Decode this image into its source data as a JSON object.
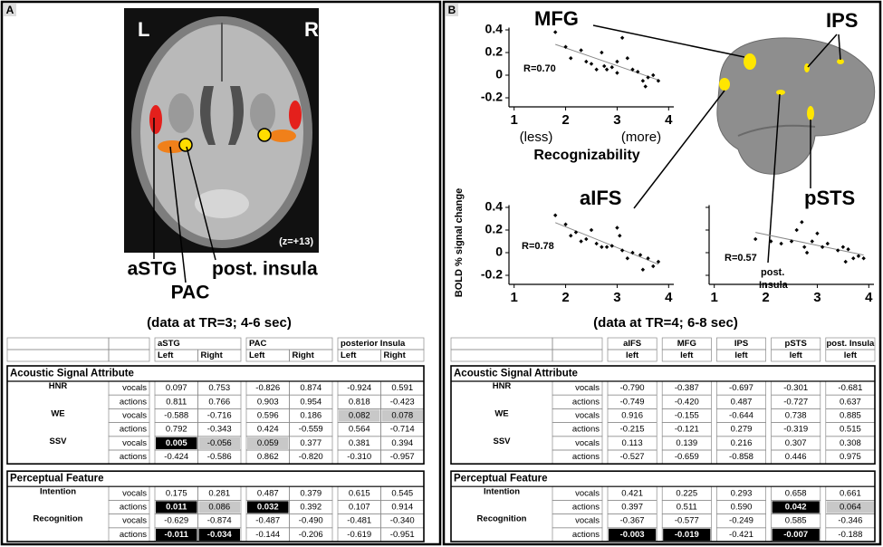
{
  "panel_a": {
    "label": "A",
    "image_labels": {
      "left": "L",
      "right": "R",
      "slice": "(z=+13)"
    },
    "regions": [
      "aSTG",
      "PAC",
      "post. insula"
    ],
    "caption": "(data at TR=3; 4-6 sec)",
    "table": {
      "groups": [
        {
          "name": "aSTG",
          "subs": [
            "Left",
            "Right"
          ]
        },
        {
          "name": "PAC",
          "subs": [
            "Left",
            "Right"
          ]
        },
        {
          "name": "posterior Insula",
          "subs": [
            "Left",
            "Right"
          ]
        }
      ],
      "sections": [
        {
          "title": "Acoustic Signal Attribute",
          "rows": [
            {
              "label": "HNR",
              "kind": "vocals",
              "cells": [
                "0.097",
                "0.753",
                "-0.826",
                "0.874",
                "-0.924",
                "0.591"
              ]
            },
            {
              "kind": "actions",
              "cells": [
                "0.811",
                "0.766",
                "0.903",
                "0.954",
                "0.818",
                "-0.423"
              ]
            },
            {
              "label": "WE",
              "kind": "vocals",
              "cells": [
                "-0.588",
                "-0.716",
                "0.596",
                "0.186",
                {
                  "text": "0.082",
                  "fill": "#c8c8c8"
                },
                {
                  "text": "0.078",
                  "fill": "#c8c8c8"
                }
              ]
            },
            {
              "kind": "actions",
              "cells": [
                "0.792",
                "-0.343",
                "0.424",
                "-0.559",
                "0.564",
                "-0.714"
              ]
            },
            {
              "label": "SSV",
              "kind": "vocals",
              "cells": [
                {
                  "text": "0.005",
                  "fill": "#000000"
                },
                {
                  "text": "-0.056",
                  "fill": "#c8c8c8"
                },
                {
                  "text": "0.059",
                  "fill": "#c8c8c8"
                },
                "0.377",
                "0.381",
                "0.394"
              ]
            },
            {
              "kind": "actions",
              "cells": [
                "-0.424",
                "-0.586",
                "0.862",
                "-0.820",
                "-0.310",
                "-0.957"
              ]
            }
          ]
        },
        {
          "title": "Perceptual Feature",
          "rows": [
            {
              "label": "Intention",
              "kind": "vocals",
              "cells": [
                "0.175",
                "0.281",
                "0.487",
                "0.379",
                "0.615",
                "0.545"
              ]
            },
            {
              "kind": "actions",
              "cells": [
                {
                  "text": "0.011",
                  "fill": "#000000"
                },
                {
                  "text": "0.086",
                  "fill": "#c8c8c8"
                },
                {
                  "text": "0.032",
                  "fill": "#000000"
                },
                "0.392",
                "0.107",
                "0.914"
              ]
            },
            {
              "label": "Recognition",
              "kind": "vocals",
              "cells": [
                "-0.629",
                "-0.874",
                "-0.487",
                "-0.490",
                "-0.481",
                "-0.340"
              ]
            },
            {
              "kind": "actions",
              "cells": [
                {
                  "text": "-0.011",
                  "fill": "#000000"
                },
                {
                  "text": "-0.034",
                  "fill": "#000000"
                },
                "-0.144",
                "-0.206",
                "-0.619",
                "-0.951"
              ]
            }
          ]
        }
      ]
    }
  },
  "panel_b": {
    "label": "B",
    "brain_labels": [
      "IPS",
      "post.",
      "Insula"
    ],
    "caption": "(data at TR=4; 6-8 sec)",
    "plots": [
      {
        "title": "MFG",
        "annotation": "R=0.70",
        "xlabel": "Recognizability",
        "x_end_labels": [
          "(less)",
          "(more)"
        ],
        "xlim": [
          0.9,
          4.1
        ],
        "ylim": [
          -0.28,
          0.42
        ],
        "xticks": [
          1,
          2,
          3,
          4
        ],
        "yticks": [
          0.4,
          0.2,
          0,
          -0.2
        ],
        "x": [
          1.8,
          2.0,
          2.1,
          2.3,
          2.4,
          2.5,
          2.6,
          2.7,
          2.75,
          2.8,
          2.9,
          3.0,
          3.0,
          3.1,
          3.2,
          3.3,
          3.4,
          3.5,
          3.55,
          3.6,
          3.7,
          3.8
        ],
        "y": [
          0.38,
          0.25,
          0.15,
          0.22,
          0.12,
          0.1,
          0.05,
          0.2,
          0.08,
          0.05,
          0.07,
          0.12,
          0.02,
          0.33,
          0.15,
          0.05,
          0.03,
          -0.05,
          -0.1,
          -0.02,
          0.0,
          -0.05
        ]
      },
      {
        "title": "aIFS",
        "annotation": "R=0.78",
        "ylabel": "BOLD % signal change",
        "xlim": [
          0.9,
          4.1
        ],
        "ylim": [
          -0.28,
          0.42
        ],
        "xticks": [
          1,
          2,
          3,
          4
        ],
        "yticks": [
          0.4,
          0.2,
          0,
          -0.2
        ],
        "x": [
          1.8,
          2.0,
          2.1,
          2.2,
          2.3,
          2.4,
          2.5,
          2.6,
          2.7,
          2.8,
          2.9,
          3.0,
          3.05,
          3.1,
          3.2,
          3.3,
          3.45,
          3.5,
          3.6,
          3.7,
          3.8
        ],
        "y": [
          0.33,
          0.25,
          0.15,
          0.18,
          0.1,
          0.12,
          0.2,
          0.08,
          0.05,
          0.05,
          0.06,
          0.22,
          0.15,
          0.02,
          -0.05,
          0.0,
          -0.02,
          -0.15,
          -0.05,
          -0.12,
          -0.08
        ]
      },
      {
        "title": "pSTS",
        "annotation": "R=0.57",
        "ytick_labels": false,
        "xlim": [
          0.9,
          4.1
        ],
        "ylim": [
          -0.28,
          0.42
        ],
        "xticks": [
          1,
          2,
          3,
          4
        ],
        "yticks": [
          0.4,
          0.2,
          0,
          -0.2
        ],
        "x": [
          1.8,
          2.1,
          2.3,
          2.5,
          2.6,
          2.7,
          2.75,
          2.8,
          2.9,
          3.0,
          3.1,
          3.2,
          3.4,
          3.5,
          3.55,
          3.6,
          3.7,
          3.8,
          3.9
        ],
        "y": [
          0.12,
          0.1,
          0.08,
          0.1,
          0.2,
          0.27,
          0.05,
          0.0,
          0.1,
          0.17,
          0.05,
          0.08,
          0.02,
          0.05,
          -0.08,
          0.03,
          -0.05,
          -0.03,
          -0.05
        ]
      }
    ],
    "table": {
      "groups": [
        {
          "name": "aIFS",
          "subs": [
            "left"
          ]
        },
        {
          "name": "MFG",
          "subs": [
            "left"
          ]
        },
        {
          "name": "IPS",
          "subs": [
            "left"
          ]
        },
        {
          "name": "pSTS",
          "subs": [
            "left"
          ]
        },
        {
          "name": "post. Insula",
          "subs": [
            "left"
          ]
        }
      ],
      "sections": [
        {
          "title": "Acoustic Signal Attribute",
          "rows": [
            {
              "label": "HNR",
              "kind": "vocals",
              "cells": [
                "-0.790",
                "-0.387",
                "-0.697",
                "-0.301",
                "-0.681"
              ]
            },
            {
              "kind": "actions",
              "cells": [
                "-0.749",
                "-0.420",
                "0.487",
                "-0.727",
                "0.637"
              ]
            },
            {
              "label": "WE",
              "kind": "vocals",
              "cells": [
                "0.916",
                "-0.155",
                "-0.644",
                "0.738",
                "0.885"
              ]
            },
            {
              "kind": "actions",
              "cells": [
                "-0.215",
                "-0.121",
                "0.279",
                "-0.319",
                "0.515"
              ]
            },
            {
              "label": "SSV",
              "kind": "vocals",
              "cells": [
                "0.113",
                "0.139",
                "0.216",
                "0.307",
                "0.308"
              ]
            },
            {
              "kind": "actions",
              "cells": [
                "-0.527",
                "-0.659",
                "-0.858",
                "0.446",
                "0.975"
              ]
            }
          ]
        },
        {
          "title": "Perceptual Feature",
          "rows": [
            {
              "label": "Intention",
              "kind": "vocals",
              "cells": [
                "0.421",
                "0.225",
                "0.293",
                "0.658",
                "0.661"
              ]
            },
            {
              "kind": "actions",
              "cells": [
                "0.397",
                "0.511",
                "0.590",
                {
                  "text": "0.042",
                  "fill": "#000000"
                },
                {
                  "text": "0.064",
                  "fill": "#c8c8c8"
                }
              ]
            },
            {
              "label": "Recognition",
              "kind": "vocals",
              "cells": [
                "-0.367",
                "-0.577",
                "-0.249",
                "0.585",
                "-0.346"
              ]
            },
            {
              "kind": "actions",
              "cells": [
                {
                  "text": "-0.003",
                  "fill": "#000000"
                },
                {
                  "text": "-0.019",
                  "fill": "#000000"
                },
                "-0.421",
                {
                  "text": "-0.007",
                  "fill": "#000000"
                },
                "-0.188"
              ]
            }
          ]
        }
      ]
    }
  }
}
